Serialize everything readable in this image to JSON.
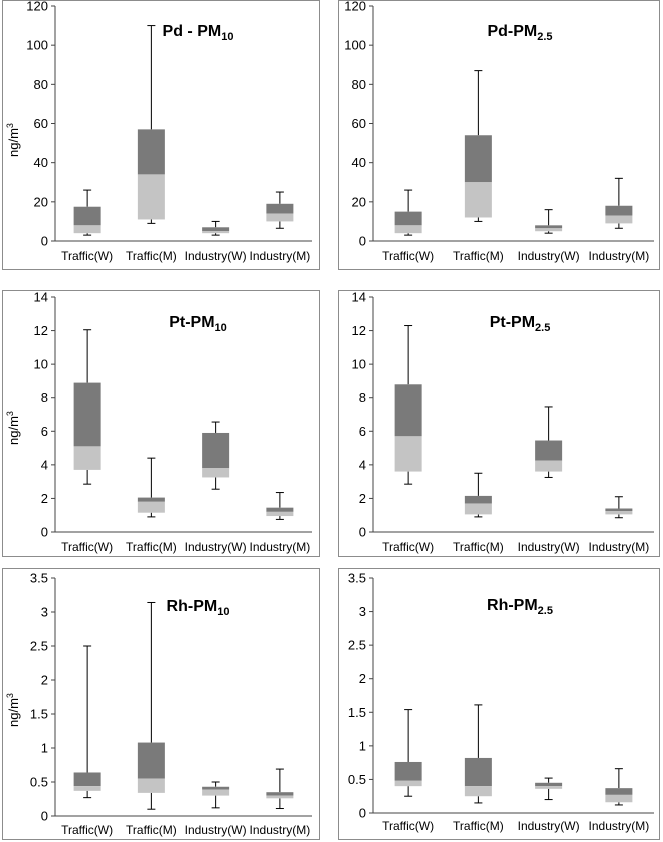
{
  "figure": {
    "category_labels": [
      "Traffic(W)",
      "Traffic(M)",
      "Industry(W)",
      "Industry(M)"
    ],
    "y_unit_label_base": "ng/m",
    "y_unit_label_sup": "3"
  },
  "colors": {
    "upper_box": "#7a7a7a",
    "lower_box": "#c4c4c4",
    "axis": "#444444",
    "frame": "#8c8c8c",
    "text": "#000000"
  },
  "chart_data": [
    {
      "type": "boxplot",
      "title_main": "Pd - PM",
      "title_sub": "10",
      "categories": [
        "Traffic(W)",
        "Traffic(M)",
        "Industry(W)",
        "Industry(M)"
      ],
      "ylim": [
        0,
        120
      ],
      "yticks": [
        "0",
        "20",
        "40",
        "60",
        "80",
        "100",
        "120"
      ],
      "ytick_values": [
        0,
        20,
        40,
        60,
        80,
        100,
        120
      ],
      "ylabel": "ng/m3",
      "stats": [
        {
          "min": 3,
          "q1": 4,
          "median": 8,
          "q3": 17.5,
          "max": 26
        },
        {
          "min": 9,
          "q1": 11,
          "median": 34,
          "q3": 57,
          "max": 110
        },
        {
          "min": 3,
          "q1": 4,
          "median": 5,
          "q3": 7,
          "max": 10
        },
        {
          "min": 6.5,
          "q1": 10,
          "median": 14,
          "q3": 19,
          "max": 25
        }
      ]
    },
    {
      "type": "boxplot",
      "title_main": "Pd-PM",
      "title_sub": "2.5",
      "categories": [
        "Traffic(W)",
        "Traffic(M)",
        "Industry(W)",
        "Industry(M)"
      ],
      "ylim": [
        0,
        120
      ],
      "yticks": [
        "0",
        "20",
        "40",
        "60",
        "80",
        "100",
        "120"
      ],
      "ytick_values": [
        0,
        20,
        40,
        60,
        80,
        100,
        120
      ],
      "ylabel": "",
      "stats": [
        {
          "min": 3,
          "q1": 4,
          "median": 8,
          "q3": 15,
          "max": 26
        },
        {
          "min": 10,
          "q1": 12,
          "median": 30,
          "q3": 54,
          "max": 87
        },
        {
          "min": 4,
          "q1": 5,
          "median": 6.5,
          "q3": 8,
          "max": 16
        },
        {
          "min": 6.5,
          "q1": 9,
          "median": 13,
          "q3": 18,
          "max": 32
        }
      ]
    },
    {
      "type": "boxplot",
      "title_main": "Pt-PM",
      "title_sub": "10",
      "categories": [
        "Traffic(W)",
        "Traffic(M)",
        "Industry(W)",
        "Industry(M)"
      ],
      "ylim": [
        0,
        14
      ],
      "yticks": [
        "0",
        "2",
        "4",
        "6",
        "8",
        "10",
        "12",
        "14"
      ],
      "ytick_values": [
        0,
        2,
        4,
        6,
        8,
        10,
        12,
        14
      ],
      "ylabel": "ng/m3",
      "stats": [
        {
          "min": 2.85,
          "q1": 3.7,
          "median": 5.1,
          "q3": 8.9,
          "max": 12.05
        },
        {
          "min": 0.9,
          "q1": 1.15,
          "median": 1.8,
          "q3": 2.05,
          "max": 4.4
        },
        {
          "min": 2.55,
          "q1": 3.25,
          "median": 3.8,
          "q3": 5.9,
          "max": 6.55
        },
        {
          "min": 0.75,
          "q1": 0.95,
          "median": 1.2,
          "q3": 1.45,
          "max": 2.35
        }
      ]
    },
    {
      "type": "boxplot",
      "title_main": "Pt-PM",
      "title_sub": "2.5",
      "categories": [
        "Traffic(W)",
        "Traffic(M)",
        "Industry(W)",
        "Industry(M)"
      ],
      "ylim": [
        0,
        14
      ],
      "yticks": [
        "0",
        "2",
        "4",
        "6",
        "8",
        "10",
        "12",
        "14"
      ],
      "ytick_values": [
        0,
        2,
        4,
        6,
        8,
        10,
        12,
        14
      ],
      "ylabel": "",
      "stats": [
        {
          "min": 2.85,
          "q1": 3.6,
          "median": 5.7,
          "q3": 8.8,
          "max": 12.3
        },
        {
          "min": 0.9,
          "q1": 1.05,
          "median": 1.7,
          "q3": 2.15,
          "max": 3.5
        },
        {
          "min": 3.25,
          "q1": 3.6,
          "median": 4.25,
          "q3": 5.45,
          "max": 7.45
        },
        {
          "min": 0.85,
          "q1": 1.05,
          "median": 1.25,
          "q3": 1.4,
          "max": 2.1
        }
      ]
    },
    {
      "type": "boxplot",
      "title_main": "Rh-PM",
      "title_sub": "10",
      "categories": [
        "Traffic(W)",
        "Traffic(M)",
        "Industry(W)",
        "Industry(M)"
      ],
      "ylim": [
        0,
        3.5
      ],
      "yticks": [
        "0",
        "0.5",
        "1",
        "1.5",
        "2",
        "2.5",
        "3",
        "3.5"
      ],
      "ytick_values": [
        0,
        0.5,
        1,
        1.5,
        2,
        2.5,
        3,
        3.5
      ],
      "ylabel": "ng/m3",
      "stats": [
        {
          "min": 0.27,
          "q1": 0.37,
          "median": 0.44,
          "q3": 0.64,
          "max": 2.5
        },
        {
          "min": 0.1,
          "q1": 0.34,
          "median": 0.55,
          "q3": 1.08,
          "max": 3.14
        },
        {
          "min": 0.12,
          "q1": 0.3,
          "median": 0.39,
          "q3": 0.43,
          "max": 0.5
        },
        {
          "min": 0.11,
          "q1": 0.26,
          "median": 0.3,
          "q3": 0.35,
          "max": 0.69
        }
      ]
    },
    {
      "type": "boxplot",
      "title_main": "Rh-PM",
      "title_sub": "2.5",
      "categories": [
        "Traffic(W)",
        "Traffic(M)",
        "Industry(W)",
        "Industry(M)"
      ],
      "ylim": [
        0,
        3.5
      ],
      "yticks": [
        "0",
        "0.5",
        "1",
        "1.5",
        "2",
        "2.5",
        "3",
        "3.5"
      ],
      "ytick_values": [
        0,
        0.5,
        1,
        1.5,
        2,
        2.5,
        3,
        3.5
      ],
      "ylabel": "",
      "stats": [
        {
          "min": 0.25,
          "q1": 0.4,
          "median": 0.48,
          "q3": 0.76,
          "max": 1.54
        },
        {
          "min": 0.15,
          "q1": 0.25,
          "median": 0.4,
          "q3": 0.82,
          "max": 1.61
        },
        {
          "min": 0.2,
          "q1": 0.36,
          "median": 0.4,
          "q3": 0.45,
          "max": 0.52
        },
        {
          "min": 0.12,
          "q1": 0.16,
          "median": 0.27,
          "q3": 0.37,
          "max": 0.66
        }
      ]
    }
  ]
}
